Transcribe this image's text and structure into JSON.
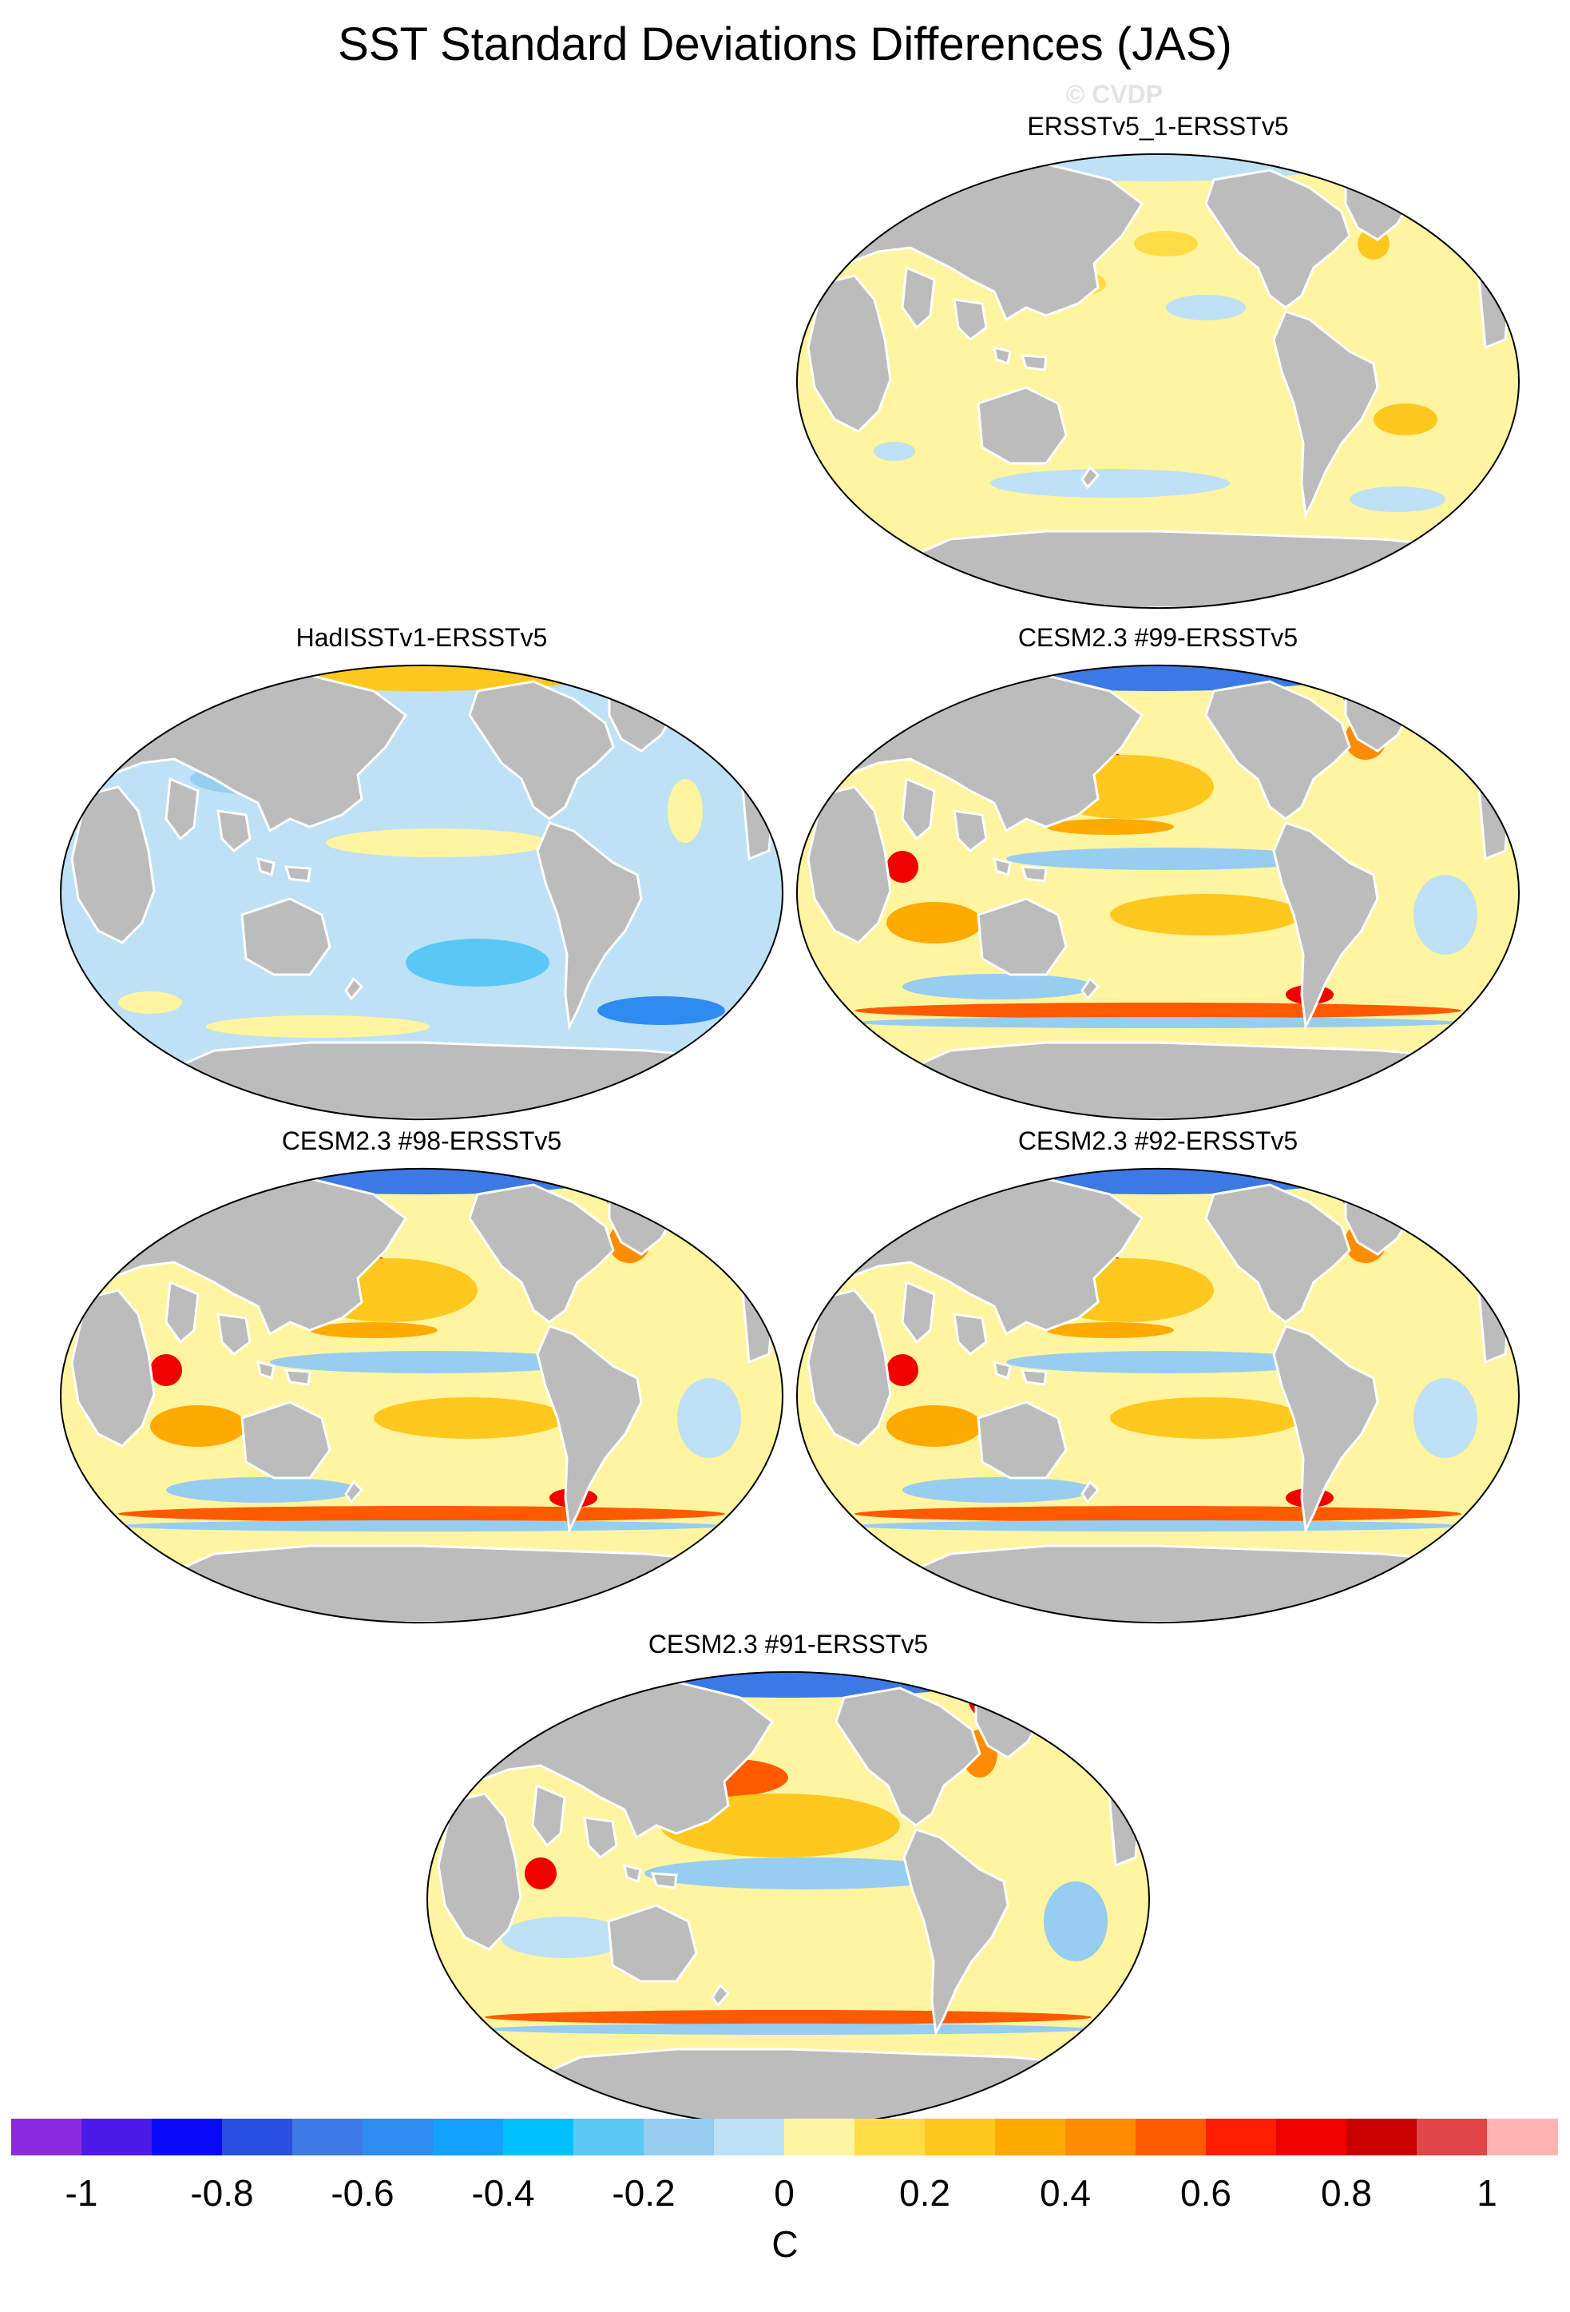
{
  "title": "SST Standard Deviations Differences (JAS)",
  "copyright": "© CVDP",
  "panels": [
    {
      "label": "ERSSTv5_1-ERSSTv5",
      "scheme": "weak"
    },
    {
      "label": "HadISSTv1-ERSSTv5",
      "scheme": "cool"
    },
    {
      "label": "CESM2.3 #99-ERSSTv5",
      "scheme": "warm"
    },
    {
      "label": "CESM2.3 #98-ERSSTv5",
      "scheme": "warm"
    },
    {
      "label": "CESM2.3 #92-ERSSTv5",
      "scheme": "warm"
    },
    {
      "label": "CESM2.3 #91-ERSSTv5",
      "scheme": "mixed"
    }
  ],
  "colorbar": {
    "units": "C",
    "tick_labels": [
      "-1",
      "-0.8",
      "-0.6",
      "-0.4",
      "-0.2",
      "0",
      "0.2",
      "0.4",
      "0.6",
      "0.8",
      "1"
    ],
    "colors": [
      "#8a2be2",
      "#4b1ae8",
      "#0a0afa",
      "#2850e0",
      "#3c78e6",
      "#2e8cf0",
      "#14a0ff",
      "#00c0ff",
      "#5ac8f5",
      "#96cdf0",
      "#bee1f5",
      "#fff5a0",
      "#ffdc46",
      "#ffc81e",
      "#ffaa00",
      "#ff8c00",
      "#ff5a00",
      "#ff1e00",
      "#f00000",
      "#c80000",
      "#e14646",
      "#ffb4b4"
    ]
  }
}
